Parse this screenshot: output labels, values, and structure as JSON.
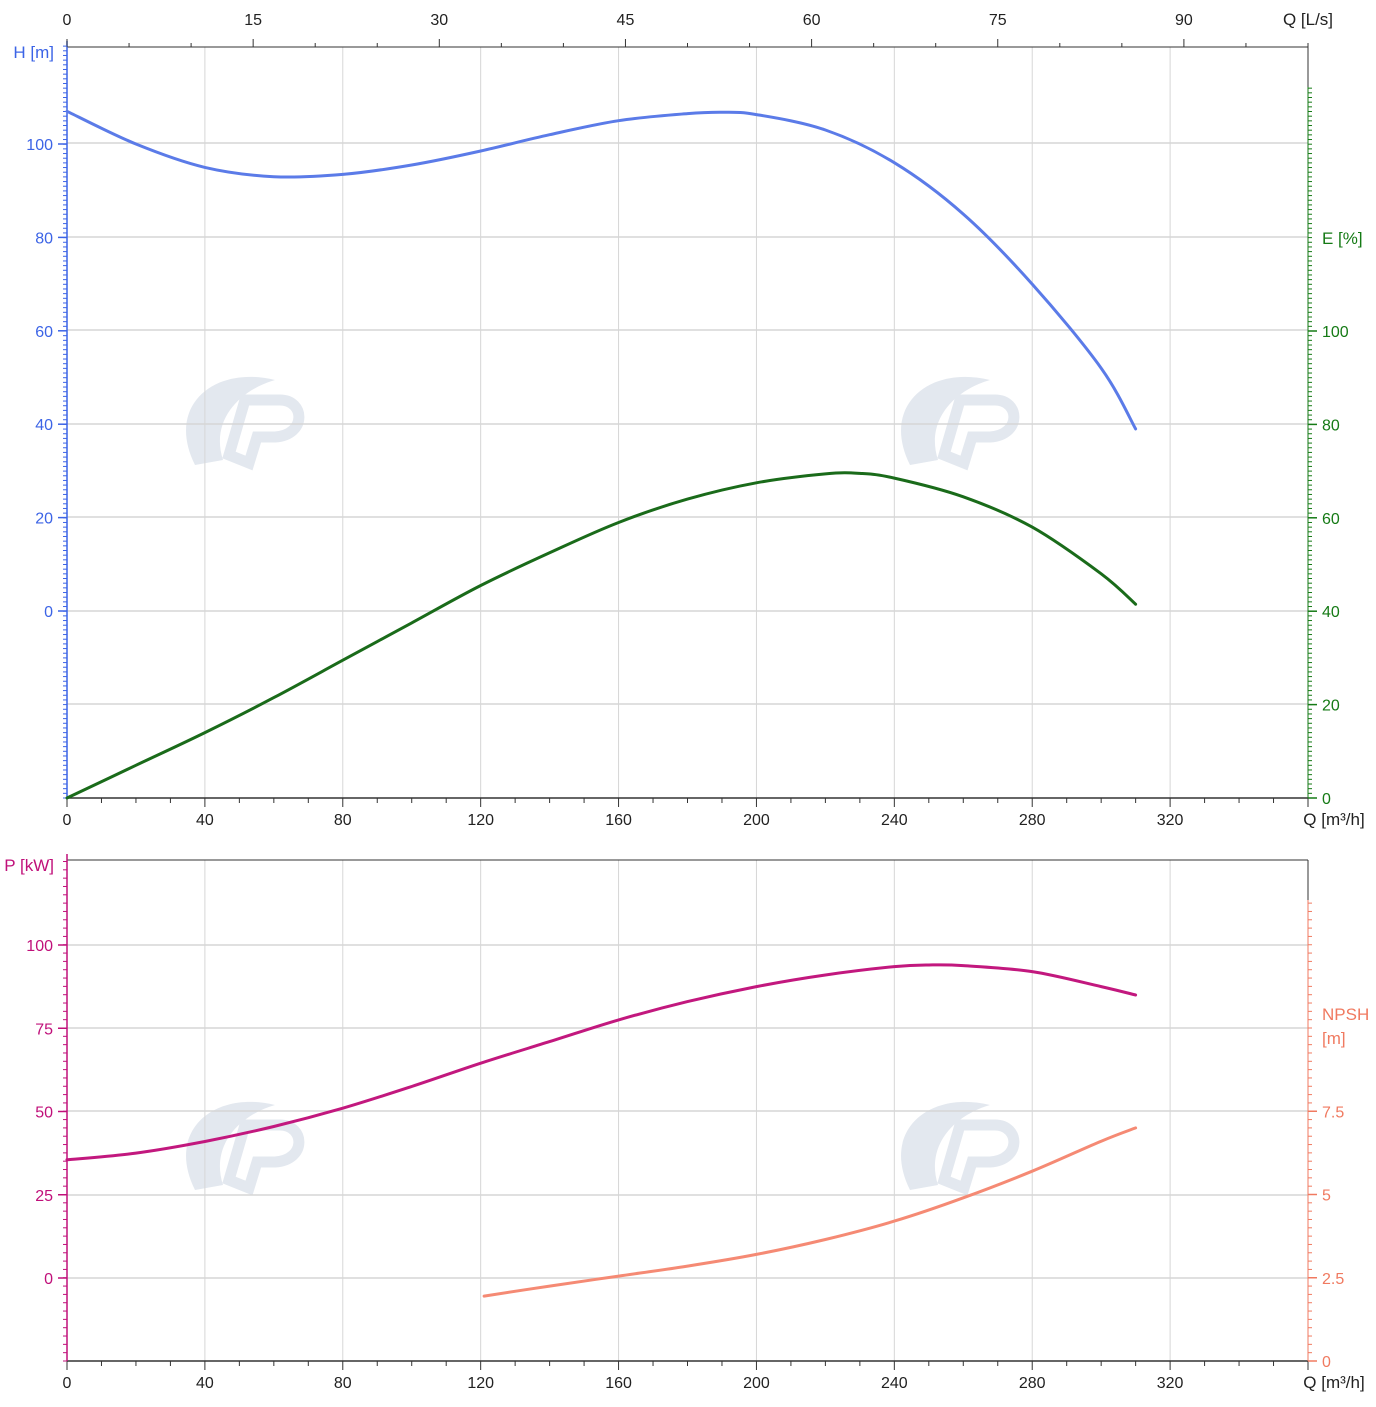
{
  "chart_data": [
    {
      "type": "line",
      "xlabel_top": "Q [L/s]",
      "xticks_top": [
        "0",
        "15",
        "30",
        "45",
        "60",
        "75",
        "90"
      ],
      "xlabel": "Q [m³/h]",
      "xticks": [
        "0",
        "40",
        "80",
        "120",
        "160",
        "200",
        "240",
        "280",
        "320"
      ],
      "xlim": [
        0,
        360
      ],
      "y_left": {
        "label": "H [m]",
        "ticks": [
          "0",
          "20",
          "40",
          "60",
          "80",
          "100"
        ],
        "color": "#3c64e6"
      },
      "y_right": {
        "label": "E [%]",
        "ticks": [
          "0",
          "20",
          "40",
          "60",
          "80",
          "100"
        ],
        "color": "#157a15"
      },
      "grid": true,
      "series": [
        {
          "axis": "left",
          "color": "#5b7be8",
          "x": [
            0,
            20,
            40,
            60,
            80,
            100,
            120,
            140,
            160,
            180,
            190,
            200,
            220,
            240,
            260,
            280,
            300,
            310
          ],
          "y": [
            107,
            100,
            95,
            93,
            93.5,
            95.5,
            98.5,
            102,
            105,
            106.5,
            106.8,
            106.3,
            103,
            96,
            85,
            70,
            52,
            39
          ]
        },
        {
          "axis": "right",
          "color": "#1a6b1a",
          "x": [
            0,
            20,
            40,
            60,
            80,
            100,
            120,
            140,
            160,
            180,
            200,
            220,
            230,
            240,
            260,
            280,
            300,
            310
          ],
          "y": [
            0,
            7,
            14,
            21.5,
            29.5,
            37.5,
            45.5,
            52.5,
            59,
            64,
            67.5,
            69.4,
            69.5,
            68.5,
            64.5,
            58,
            48,
            41.5
          ]
        }
      ]
    },
    {
      "type": "line",
      "xlabel": "Q [m³/h]",
      "xticks": [
        "0",
        "40",
        "80",
        "120",
        "160",
        "200",
        "240",
        "280",
        "320"
      ],
      "xlim": [
        0,
        360
      ],
      "y_left": {
        "label": "P [kW]",
        "ticks": [
          "0",
          "25",
          "50",
          "75",
          "100"
        ],
        "color": "#c0107a"
      },
      "y_right": {
        "label_lines": [
          "NPSH",
          "[m]"
        ],
        "ticks": [
          "0",
          "2.5",
          "5",
          "7.5"
        ],
        "color": "#f07a60"
      },
      "grid": true,
      "series": [
        {
          "axis": "left",
          "color": "#c2187e",
          "x": [
            0,
            20,
            40,
            60,
            80,
            100,
            120,
            140,
            160,
            180,
            200,
            220,
            240,
            250,
            260,
            280,
            300,
            310
          ],
          "y": [
            35.5,
            37.5,
            41,
            45.5,
            51,
            57.5,
            64.5,
            71,
            77.5,
            83,
            87.5,
            91,
            93.5,
            94,
            93.8,
            92,
            87.5,
            85
          ]
        },
        {
          "axis": "right",
          "color": "#f58a74",
          "x": [
            121,
            140,
            160,
            180,
            200,
            220,
            240,
            260,
            280,
            300,
            310
          ],
          "y": [
            1.95,
            2.25,
            2.55,
            2.85,
            3.2,
            3.65,
            4.2,
            4.9,
            5.7,
            6.6,
            7.0
          ]
        }
      ]
    }
  ]
}
